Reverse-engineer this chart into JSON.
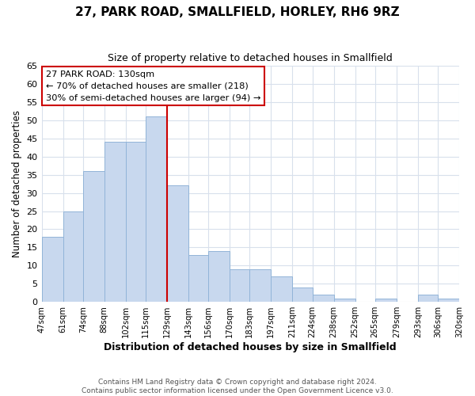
{
  "title": "27, PARK ROAD, SMALLFIELD, HORLEY, RH6 9RZ",
  "subtitle": "Size of property relative to detached houses in Smallfield",
  "xlabel": "Distribution of detached houses by size in Smallfield",
  "ylabel": "Number of detached properties",
  "footer_lines": [
    "Contains HM Land Registry data © Crown copyright and database right 2024.",
    "Contains public sector information licensed under the Open Government Licence v3.0."
  ],
  "bin_labels": [
    "47sqm",
    "61sqm",
    "74sqm",
    "88sqm",
    "102sqm",
    "115sqm",
    "129sqm",
    "143sqm",
    "156sqm",
    "170sqm",
    "183sqm",
    "197sqm",
    "211sqm",
    "224sqm",
    "238sqm",
    "252sqm",
    "265sqm",
    "279sqm",
    "293sqm",
    "306sqm",
    "320sqm"
  ],
  "bin_edges": [
    47,
    61,
    74,
    88,
    102,
    115,
    129,
    143,
    156,
    170,
    183,
    197,
    211,
    224,
    238,
    252,
    265,
    279,
    293,
    306,
    320
  ],
  "bar_heights": [
    18,
    25,
    36,
    44,
    44,
    51,
    32,
    13,
    14,
    9,
    9,
    7,
    4,
    2,
    1,
    0,
    1,
    0,
    2,
    1
  ],
  "bar_color": "#c8d8ee",
  "bar_edgecolor": "#92b4d8",
  "vline_x": 129,
  "vline_color": "#cc0000",
  "annotation_title": "27 PARK ROAD: 130sqm",
  "annotation_line1": "← 70% of detached houses are smaller (218)",
  "annotation_line2": "30% of semi-detached houses are larger (94) →",
  "annotation_box_edgecolor": "#cc0000",
  "ylim": [
    0,
    65
  ],
  "yticks": [
    0,
    5,
    10,
    15,
    20,
    25,
    30,
    35,
    40,
    45,
    50,
    55,
    60,
    65
  ],
  "bg_color": "#ffffff",
  "plot_bg_color": "#ffffff",
  "grid_color": "#d8e0ec"
}
